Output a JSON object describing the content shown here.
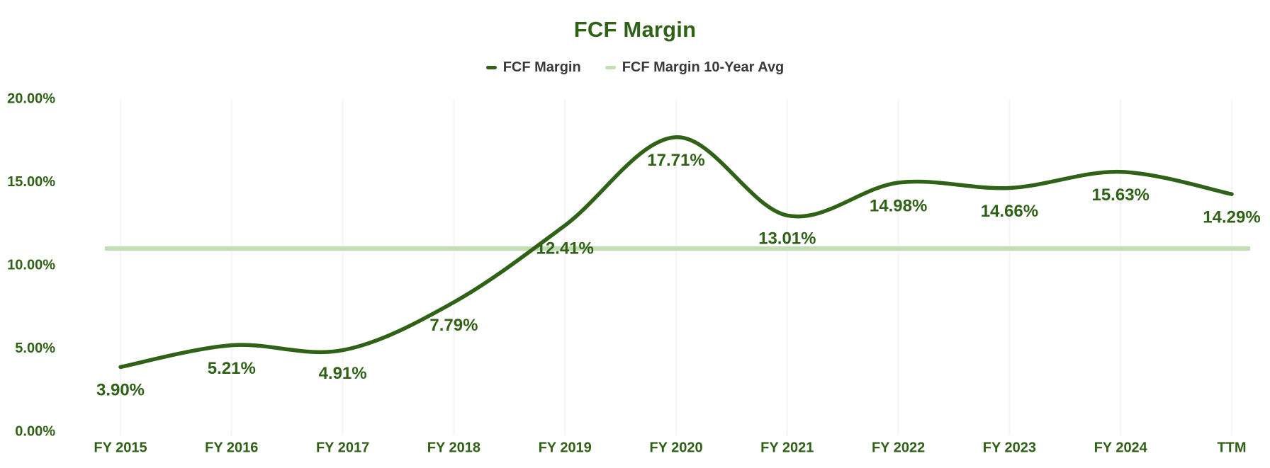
{
  "chart_data": {
    "type": "line",
    "title": "FCF Margin",
    "categories": [
      "FY 2015",
      "FY 2016",
      "FY 2017",
      "FY 2018",
      "FY 2019",
      "FY 2020",
      "FY 2021",
      "FY 2022",
      "FY 2023",
      "FY 2024",
      "TTM"
    ],
    "series": [
      {
        "name": "FCF Margin",
        "style": "smooth-line",
        "values": [
          3.9,
          5.21,
          4.91,
          7.79,
          12.41,
          17.71,
          13.01,
          14.98,
          14.66,
          15.63,
          14.29
        ],
        "labels": [
          "3.90%",
          "5.21%",
          "4.91%",
          "7.79%",
          "12.41%",
          "17.71%",
          "13.01%",
          "14.98%",
          "14.66%",
          "15.63%",
          "14.29%"
        ],
        "color": "#2f6217"
      },
      {
        "name": "FCF Margin 10-Year Avg",
        "style": "horizontal-line",
        "values": [
          11.02
        ],
        "color": "#c1ddb2"
      }
    ],
    "y_axis": {
      "min": 0,
      "max": 20,
      "ticks": [
        {
          "value": 0,
          "label": "0.00%"
        },
        {
          "value": 5,
          "label": "5.00%"
        },
        {
          "value": 10,
          "label": "10.00%"
        },
        {
          "value": 15,
          "label": "15.00%"
        },
        {
          "value": 20,
          "label": "20.00%"
        }
      ]
    },
    "legend_position": "top-center",
    "grid": "faint-vertical-lines-at-each-category",
    "colors": {
      "accent": "#2f6217",
      "avg_line": "#c1ddb2",
      "legend_text": "#3a3a3a",
      "gridline": "#f2f2f2",
      "background": "#ffffff"
    }
  }
}
